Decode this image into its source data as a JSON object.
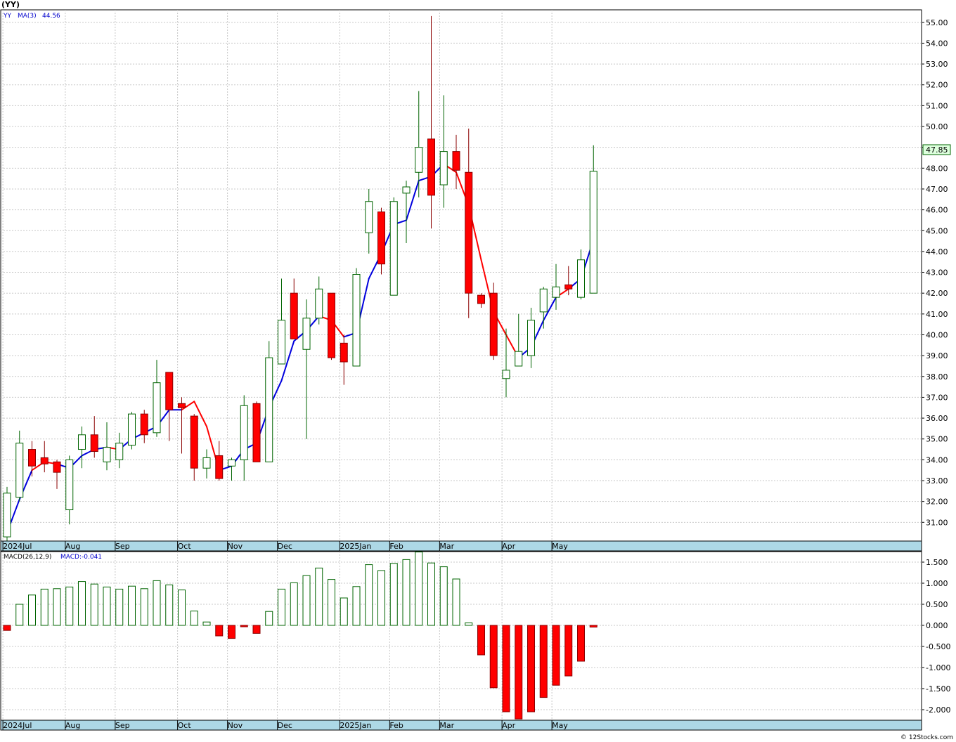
{
  "symbol_label": "(YY)",
  "watermark": "© 12Stocks.com",
  "chart_data": [
    {
      "type": "candlestick",
      "legend": {
        "ticker": "YY",
        "ma_label": "MA(3)",
        "ma_value": "44.56"
      },
      "last_price_label": "47.85",
      "ylim": [
        30.1,
        55.6
      ],
      "yticks": [
        31,
        32,
        33,
        34,
        35,
        36,
        37,
        38,
        39,
        40,
        41,
        42,
        43,
        44,
        45,
        46,
        47,
        48,
        49,
        50,
        51,
        52,
        53,
        54,
        55
      ],
      "ytick_labels": [
        "31.00",
        "32.00",
        "33.00",
        "34.00",
        "35.00",
        "36.00",
        "37.00",
        "38.00",
        "39.00",
        "40.00",
        "41.00",
        "42.00",
        "43.00",
        "44.00",
        "45.00",
        "46.00",
        "47.00",
        "48.00",
        "49.00",
        "50.00",
        "51.00",
        "52.00",
        "53.00",
        "54.00",
        "55.00"
      ],
      "xticks": [
        {
          "label": "2024Jul",
          "index": 0
        },
        {
          "label": "Aug",
          "index": 5
        },
        {
          "label": "Sep",
          "index": 9
        },
        {
          "label": "Oct",
          "index": 14
        },
        {
          "label": "Nov",
          "index": 18
        },
        {
          "label": "Dec",
          "index": 22
        },
        {
          "label": "2025Jan",
          "index": 27
        },
        {
          "label": "Feb",
          "index": 31
        },
        {
          "label": "Mar",
          "index": 35
        },
        {
          "label": "Apr",
          "index": 40
        },
        {
          "label": "May",
          "index": 44
        }
      ],
      "candles": [
        {
          "o": 30.3,
          "h": 32.7,
          "l": 30.1,
          "c": 32.4
        },
        {
          "o": 32.2,
          "h": 35.4,
          "l": 32.0,
          "c": 34.8
        },
        {
          "o": 34.5,
          "h": 34.9,
          "l": 33.2,
          "c": 33.7
        },
        {
          "o": 34.1,
          "h": 34.9,
          "l": 33.4,
          "c": 33.8
        },
        {
          "o": 33.9,
          "h": 34.0,
          "l": 32.6,
          "c": 33.4
        },
        {
          "o": 31.6,
          "h": 34.2,
          "l": 30.9,
          "c": 34.0
        },
        {
          "o": 34.5,
          "h": 35.6,
          "l": 33.6,
          "c": 35.2
        },
        {
          "o": 35.2,
          "h": 36.1,
          "l": 34.1,
          "c": 34.4
        },
        {
          "o": 33.9,
          "h": 35.8,
          "l": 33.5,
          "c": 34.6
        },
        {
          "o": 34.0,
          "h": 35.3,
          "l": 33.6,
          "c": 34.8
        },
        {
          "o": 34.7,
          "h": 36.3,
          "l": 34.5,
          "c": 36.2
        },
        {
          "o": 36.2,
          "h": 36.4,
          "l": 34.8,
          "c": 35.2
        },
        {
          "o": 35.3,
          "h": 38.8,
          "l": 35.1,
          "c": 37.7
        },
        {
          "o": 38.2,
          "h": 38.2,
          "l": 34.9,
          "c": 36.4
        },
        {
          "o": 36.7,
          "h": 37.0,
          "l": 34.3,
          "c": 36.5
        },
        {
          "o": 36.1,
          "h": 36.2,
          "l": 33.0,
          "c": 33.6
        },
        {
          "o": 33.6,
          "h": 34.5,
          "l": 33.1,
          "c": 34.1
        },
        {
          "o": 34.2,
          "h": 34.9,
          "l": 33.0,
          "c": 33.1
        },
        {
          "o": 33.7,
          "h": 34.1,
          "l": 33.0,
          "c": 34.0
        },
        {
          "o": 34.0,
          "h": 37.1,
          "l": 33.0,
          "c": 36.6
        },
        {
          "o": 36.7,
          "h": 36.8,
          "l": 33.9,
          "c": 33.9
        },
        {
          "o": 33.9,
          "h": 39.7,
          "l": 33.9,
          "c": 38.9
        },
        {
          "o": 38.6,
          "h": 42.7,
          "l": 38.6,
          "c": 40.7
        },
        {
          "o": 42.0,
          "h": 42.7,
          "l": 39.8,
          "c": 39.8
        },
        {
          "o": 39.3,
          "h": 41.7,
          "l": 35.0,
          "c": 40.8
        },
        {
          "o": 40.8,
          "h": 42.8,
          "l": 40.5,
          "c": 42.2
        },
        {
          "o": 42.0,
          "h": 42.0,
          "l": 38.8,
          "c": 38.9
        },
        {
          "o": 39.6,
          "h": 40.0,
          "l": 37.6,
          "c": 38.7
        },
        {
          "o": 38.5,
          "h": 43.2,
          "l": 38.5,
          "c": 42.9
        },
        {
          "o": 44.9,
          "h": 47.0,
          "l": 43.9,
          "c": 46.4
        },
        {
          "o": 45.9,
          "h": 46.1,
          "l": 42.9,
          "c": 43.4
        },
        {
          "o": 41.9,
          "h": 46.6,
          "l": 41.9,
          "c": 46.4
        },
        {
          "o": 46.8,
          "h": 47.4,
          "l": 44.4,
          "c": 47.1
        },
        {
          "o": 47.8,
          "h": 51.7,
          "l": 46.6,
          "c": 49.0
        },
        {
          "o": 49.4,
          "h": 55.3,
          "l": 45.1,
          "c": 46.7
        },
        {
          "o": 47.2,
          "h": 51.5,
          "l": 46.1,
          "c": 48.8
        },
        {
          "o": 48.8,
          "h": 49.6,
          "l": 47.0,
          "c": 47.9
        },
        {
          "o": 47.8,
          "h": 49.9,
          "l": 40.8,
          "c": 42.0
        },
        {
          "o": 41.9,
          "h": 42.0,
          "l": 41.3,
          "c": 41.5
        },
        {
          "o": 42.0,
          "h": 42.5,
          "l": 38.8,
          "c": 39.0
        },
        {
          "o": 37.9,
          "h": 40.3,
          "l": 37.0,
          "c": 38.3
        },
        {
          "o": 38.5,
          "h": 41.0,
          "l": 38.5,
          "c": 39.2
        },
        {
          "o": 39.0,
          "h": 41.3,
          "l": 38.4,
          "c": 40.7
        },
        {
          "o": 41.1,
          "h": 42.3,
          "l": 40.3,
          "c": 42.2
        },
        {
          "o": 41.8,
          "h": 43.4,
          "l": 41.2,
          "c": 42.3
        },
        {
          "o": 42.4,
          "h": 43.3,
          "l": 41.9,
          "c": 42.2
        },
        {
          "o": 41.8,
          "h": 44.1,
          "l": 41.7,
          "c": 43.6
        },
        {
          "o": 42.0,
          "h": 49.1,
          "l": 42.0,
          "c": 47.85
        }
      ],
      "ma3": [
        30.5,
        32.1,
        33.5,
        33.9,
        33.8,
        33.6,
        34.2,
        34.5,
        34.6,
        34.5,
        35.0,
        35.3,
        35.6,
        36.4,
        36.4,
        36.8,
        35.6,
        33.5,
        33.7,
        34.5,
        34.8,
        36.5,
        37.8,
        39.7,
        40.2,
        40.9,
        40.7,
        39.9,
        40.1,
        42.7,
        43.9,
        45.3,
        45.5,
        47.4,
        47.6,
        48.2,
        47.8,
        46.2,
        43.6,
        41.1,
        40.0,
        38.9,
        39.4,
        40.7,
        41.8,
        42.2,
        42.7,
        44.56
      ],
      "ma3_colors": [
        "blue",
        "blue",
        "blue",
        "red",
        "red",
        "blue",
        "blue",
        "blue",
        "blue",
        "red",
        "blue",
        "blue",
        "blue",
        "blue",
        "blue",
        "red",
        "red",
        "red",
        "blue",
        "blue",
        "blue",
        "blue",
        "blue",
        "blue",
        "blue",
        "blue",
        "red",
        "red",
        "blue",
        "blue",
        "blue",
        "blue",
        "blue",
        "blue",
        "blue",
        "blue",
        "red",
        "red",
        "red",
        "red",
        "red",
        "red",
        "blue",
        "blue",
        "blue",
        "red",
        "blue",
        "blue"
      ]
    },
    {
      "type": "bar",
      "legend": {
        "label": "MACD(26,12,9)",
        "value_label": "MACD:-0.041"
      },
      "ylim": [
        -2.25,
        1.75
      ],
      "yticks": [
        -2.0,
        -1.5,
        -1.0,
        -0.5,
        0.0,
        0.5,
        1.0,
        1.5
      ],
      "ytick_labels": [
        "-2.000",
        "-1.500",
        "-1.000",
        "-0.500",
        "0.000",
        "0.500",
        "1.000",
        "1.500"
      ],
      "values": [
        -0.12,
        0.5,
        0.72,
        0.86,
        0.87,
        0.91,
        1.04,
        0.98,
        0.91,
        0.86,
        0.93,
        0.87,
        1.06,
        0.96,
        0.84,
        0.34,
        0.08,
        -0.25,
        -0.31,
        -0.02,
        -0.19,
        0.33,
        0.86,
        1.01,
        1.18,
        1.36,
        1.09,
        0.65,
        0.92,
        1.44,
        1.3,
        1.47,
        1.56,
        1.74,
        1.48,
        1.39,
        1.1,
        0.06,
        -0.7,
        -1.48,
        -2.05,
        -2.22,
        -2.05,
        -1.71,
        -1.42,
        -1.2,
        -0.85,
        -0.041
      ]
    }
  ]
}
